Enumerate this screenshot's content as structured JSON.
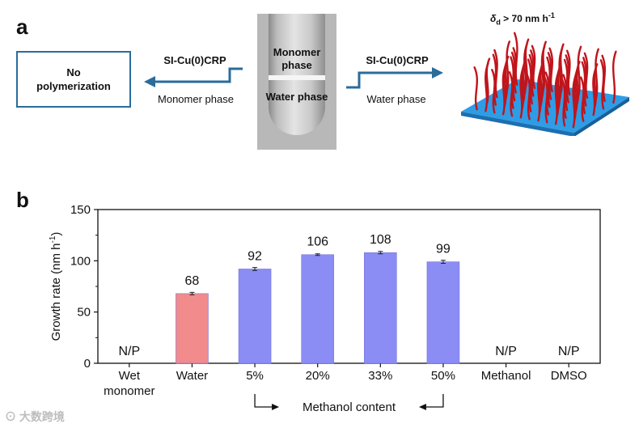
{
  "panel_a": {
    "letter": "a",
    "left_box_text": "No polymerization",
    "left_arrow_top": "SI-Cu(0)CRP",
    "left_arrow_bottom": "Monomer phase",
    "vial_top_label": "Monomer phase",
    "vial_bottom_label": "Water phase",
    "right_arrow_top": "SI-Cu(0)CRP",
    "right_arrow_bottom": "Water phase",
    "thickness_label": "δd > 70 nm h-1",
    "thickness_symbol": "δ",
    "thickness_sub": "d",
    "thickness_rest": " > 70 nm h",
    "thickness_sup": "-1",
    "arrow_color": "#2a6c9c",
    "brush_color": "#c0141b",
    "substrate_color": "#2e9de6"
  },
  "panel_b": {
    "letter": "b",
    "bracket_label": "Methanol content"
  },
  "chart_data": {
    "type": "bar",
    "categories": [
      "Wet monomer",
      "Water",
      "5%",
      "20%",
      "33%",
      "50%",
      "Methanol",
      "DMSO"
    ],
    "category_lines": [
      [
        "Wet",
        "monomer"
      ],
      [
        "Water"
      ],
      [
        "5%"
      ],
      [
        "20%"
      ],
      [
        "33%"
      ],
      [
        "50%"
      ],
      [
        "Methanol"
      ],
      [
        "DMSO"
      ]
    ],
    "values": [
      null,
      68,
      92,
      106,
      108,
      99,
      null,
      null
    ],
    "errors": [
      0,
      1.2,
      1.5,
      0.8,
      1.2,
      1.5,
      0,
      0
    ],
    "data_labels": [
      "N/P",
      "68",
      "92",
      "106",
      "108",
      "99",
      "N/P",
      "N/P"
    ],
    "bar_colors": [
      null,
      "#f28b8b",
      "#8c8cf5",
      "#8c8cf5",
      "#8c8cf5",
      "#8c8cf5",
      null,
      null
    ],
    "ylabel": "Growth rate (nm h-1)",
    "ylabel_main": "Growth rate (nm h",
    "ylabel_sup": "-1",
    "ylabel_close": ")",
    "xlabel": "",
    "ylim": [
      0,
      150
    ],
    "yticks": [
      0,
      50,
      100,
      150
    ],
    "grid": false
  },
  "watermark": "大数跨境"
}
